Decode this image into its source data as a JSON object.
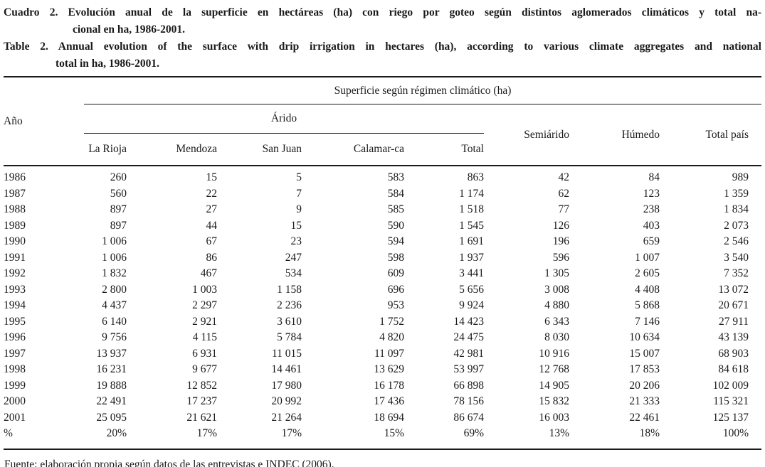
{
  "caption_es": {
    "line1": "Cuadro 2. Evolución anual de la superficie en hectáreas (ha) con riego por goteo según distintos aglomerados climáticos y total na-",
    "line2": "cional en ha, 1986-2001."
  },
  "caption_en": {
    "line1": "Table 2. Annual evolution of the surface with drip irrigation in hectares (ha), according to various climate aggregates and national",
    "line2": "total in ha, 1986-2001."
  },
  "table": {
    "group_header": "Superficie según régimen climático (ha)",
    "year_header": "Año",
    "arido_header": "Árido",
    "columns": [
      "La Rioja",
      "Mendoza",
      "San Juan",
      "Calamar-ca",
      "Total"
    ],
    "right_columns": [
      "Semiárido",
      "Húmedo",
      "Total país"
    ],
    "rows": [
      [
        "1986",
        "260",
        "15",
        "5",
        "583",
        "863",
        "42",
        "84",
        "989"
      ],
      [
        "1987",
        "560",
        "22",
        "7",
        "584",
        "1 174",
        "62",
        "123",
        "1 359"
      ],
      [
        "1988",
        "897",
        "27",
        "9",
        "585",
        "1 518",
        "77",
        "238",
        "1 834"
      ],
      [
        "1989",
        "897",
        "44",
        "15",
        "590",
        "1 545",
        "126",
        "403",
        "2 073"
      ],
      [
        "1990",
        "1 006",
        "67",
        "23",
        "594",
        "1 691",
        "196",
        "659",
        "2 546"
      ],
      [
        "1991",
        "1 006",
        "86",
        "247",
        "598",
        "1 937",
        "596",
        "1 007",
        "3 540"
      ],
      [
        "1992",
        "1 832",
        "467",
        "534",
        "609",
        "3 441",
        "1 305",
        "2 605",
        "7 352"
      ],
      [
        "1993",
        "2 800",
        "1 003",
        "1 158",
        "696",
        "5 656",
        "3 008",
        "4 408",
        "13 072"
      ],
      [
        "1994",
        "4 437",
        "2 297",
        "2 236",
        "953",
        "9 924",
        "4 880",
        "5 868",
        "20 671"
      ],
      [
        "1995",
        "6 140",
        "2 921",
        "3 610",
        "1 752",
        "14 423",
        "6 343",
        "7 146",
        "27 911"
      ],
      [
        "1996",
        "9 756",
        "4 115",
        "5 784",
        "4 820",
        "24 475",
        "8 030",
        "10 634",
        "43 139"
      ],
      [
        "1997",
        "13 937",
        "6 931",
        "11 015",
        "11 097",
        "42 981",
        "10 916",
        "15 007",
        "68 903"
      ],
      [
        "1998",
        "16 231",
        "9 677",
        "14 461",
        "13 629",
        "53 997",
        "12 768",
        "17 853",
        "84 618"
      ],
      [
        "1999",
        "19 888",
        "12 852",
        "17 980",
        "16 178",
        "66 898",
        "14 905",
        "20 206",
        "102 009"
      ],
      [
        "2000",
        "22 491",
        "17 237",
        "20 992",
        "17 436",
        "78 156",
        "15 832",
        "21 333",
        "115 321"
      ],
      [
        "2001",
        "25 095",
        "21 621",
        "21 264",
        "18 694",
        "86 674",
        "16 003",
        "22 461",
        "125 137"
      ],
      [
        "%",
        "20%",
        "17%",
        "17%",
        "15%",
        "69%",
        "13%",
        "18%",
        "100%"
      ]
    ]
  },
  "source": "Fuente: elaboración propia según datos de las entrevistas e INDEC (2006).",
  "colors": {
    "text": "#1a1a1a",
    "background": "#ffffff",
    "rule": "#1a1a1a"
  }
}
